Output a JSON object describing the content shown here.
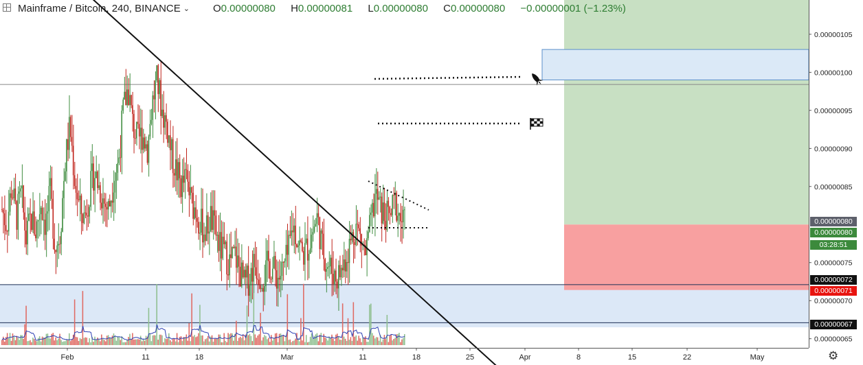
{
  "header": {
    "symbol": "Mainframe / Bitcoin, 240, BINANCE",
    "o_key": "O",
    "o_val": "0.00000080",
    "h_key": "H",
    "h_val": "0.00000081",
    "l_key": "L",
    "l_val": "0.00000080",
    "c_key": "C",
    "c_val": "0.00000080",
    "change": "−0.00000001 (−1.23%)"
  },
  "price_tags": [
    {
      "label": "0.00000080",
      "color": "#5d606b"
    },
    {
      "label": "0.00000080",
      "color": "#3c8a3c"
    },
    {
      "label": "03:28:51",
      "color": "#3c8a3c"
    },
    {
      "label": "0.00000072",
      "color": "#111111"
    },
    {
      "label": "0.00000071",
      "color": "#e8140f"
    },
    {
      "label": "0.00000067",
      "color": "#111111"
    }
  ],
  "icons": [
    "rocket-icon",
    "checkered-flag-icon",
    "settings-gear-icon",
    "chart-grid-icon"
  ],
  "colors": {
    "up": "#3f8c3f",
    "down": "#c0231b",
    "vol_up": "#8fbf8f",
    "vol_down": "#e06a63",
    "target_zone": "#c8e0c3",
    "stop_zone": "#f8a0a0",
    "support_zone": "#dce8f7",
    "breakout_zone": "#dbe9f7"
  },
  "chart_data": {
    "type": "candlestick",
    "symbol": "MFT/BTC",
    "timeframe": "240",
    "x_ticks": [
      "Feb",
      "11",
      "18",
      "Mar",
      "11",
      "18",
      "25",
      "Apr",
      "8",
      "15",
      "22",
      "May"
    ],
    "y_ticks": [
      "0.00000105",
      "0.00000100",
      "0.00000095",
      "0.00000090",
      "0.00000085",
      "0.00000075",
      "0.00000070",
      "0.00000065"
    ],
    "ylim": [
      6.38e-07,
      1.095e-06
    ],
    "last_price": 8e-07,
    "horizontal_lines": [
      9.84e-07,
      7.21e-07,
      6.71e-07
    ],
    "trendline": [
      {
        "x": 0,
        "y": 1.11e-06
      },
      {
        "x": 1,
        "y": 6e-07
      }
    ],
    "zones": {
      "support": [
        6.65e-07,
        7.21e-07
      ],
      "target": [
        8e-07,
        1.095e-06
      ],
      "stop": [
        7.14e-07,
        8e-07
      ],
      "breakout_box": [
        9.9e-07,
        1.03e-06
      ]
    },
    "price_path": [
      8.2e-07,
      8e-07,
      8.5e-07,
      8.1e-07,
      8.4e-07,
      7.8e-07,
      8.1e-07,
      7.9e-07,
      8.3e-07,
      8e-07,
      8.4e-07,
      7.7e-07,
      7.9e-07,
      8.8e-07,
      9.3e-07,
      8.6e-07,
      8.2e-07,
      8.1e-07,
      8.4e-07,
      8.7e-07,
      8.5e-07,
      8.3e-07,
      8.2e-07,
      8.6e-07,
      8.8e-07,
      9.5e-07,
      9.8e-07,
      9.3e-07,
      9.1e-07,
      9.2e-07,
      9e-07,
      9.6e-07,
      9.9e-07,
      9.5e-07,
      9.3e-07,
      8.9e-07,
      8.7e-07,
      8.5e-07,
      8.6e-07,
      8.3e-07,
      8.2e-07,
      8e-07,
      7.9e-07,
      8.1e-07,
      7.9e-07,
      7.7e-07,
      7.6e-07,
      7.5e-07,
      7.6e-07,
      7.4e-07,
      7.2e-07,
      7.3e-07,
      7.5e-07,
      7.4e-07,
      7.3e-07,
      7.5e-07,
      7.4e-07,
      7.3e-07,
      7.4e-07,
      7.6e-07,
      8e-07,
      7.8e-07,
      7.6e-07,
      7.7e-07,
      7.9e-07,
      8.1e-07,
      7.7e-07,
      7.5e-07,
      7.4e-07,
      7.3e-07,
      7.4e-07,
      7.6e-07,
      7.8e-07,
      8e-07,
      7.8e-07,
      7.6e-07,
      8e-07,
      8.4e-07,
      8.2e-07,
      8.1e-07,
      8.1e-07,
      8.3e-07,
      8.1e-07,
      8e-07
    ]
  }
}
